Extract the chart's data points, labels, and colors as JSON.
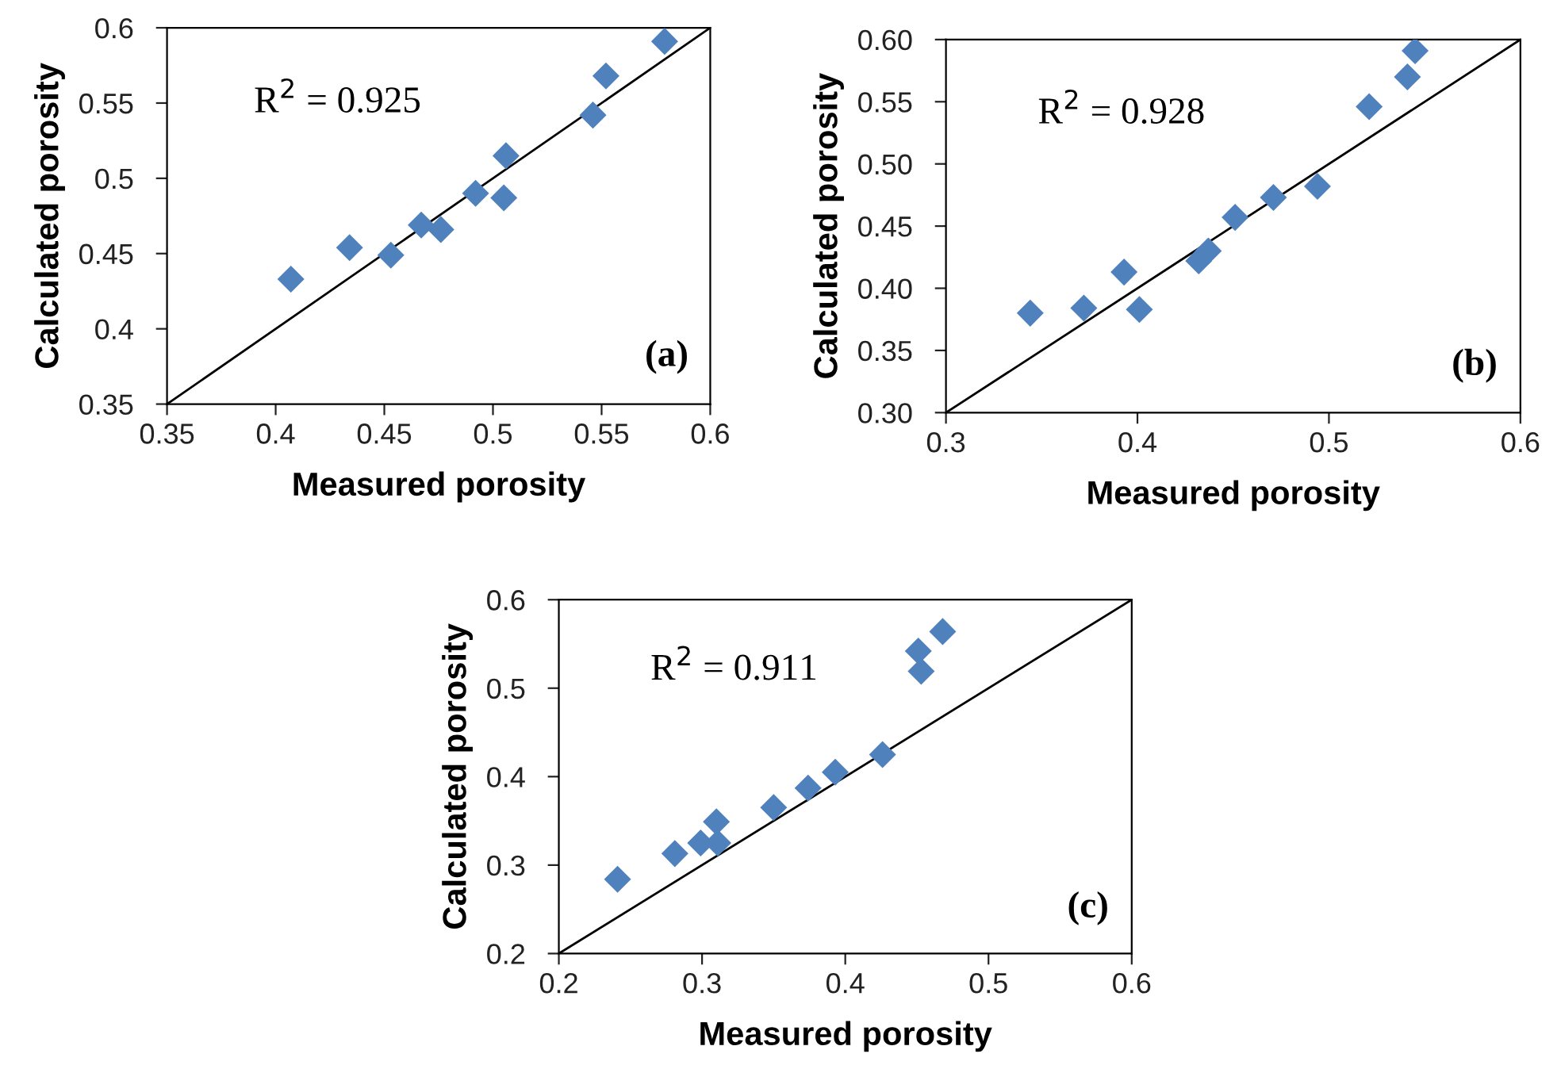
{
  "chart_data": [
    {
      "type": "scatter",
      "xlabel": "Measured porosity",
      "ylabel": "Calculated porosity",
      "annotations": [
        "R$^{2}$ = 0.925",
        "(a)"
      ],
      "xlim": [
        0.35,
        0.6
      ],
      "ylim": [
        0.35,
        0.6
      ],
      "xticks": [
        0.35,
        0.4,
        0.45,
        0.5,
        0.55,
        0.6
      ],
      "yticks": [
        0.35,
        0.4,
        0.45,
        0.5,
        0.55,
        0.6
      ],
      "grid": false,
      "series": [
        {
          "marker": "diamond",
          "color": "#4f81bd",
          "x": [
            0.407,
            0.434,
            0.453,
            0.467,
            0.476,
            0.492,
            0.505,
            0.506,
            0.546,
            0.552,
            0.579
          ],
          "values": [
            0.433,
            0.454,
            0.449,
            0.469,
            0.466,
            0.49,
            0.487,
            0.515,
            0.542,
            0.568,
            0.591
          ]
        },
        {
          "type": "line",
          "color": "#000000",
          "x": [
            0.35,
            0.6
          ],
          "values": [
            0.35,
            0.6
          ]
        }
      ]
    },
    {
      "type": "scatter",
      "xlabel": "Measured porosity",
      "ylabel": "Calculated porosity",
      "annotations": [
        "R$^{2}$ = 0.928",
        "(b)"
      ],
      "xlim": [
        0.3,
        0.6
      ],
      "ylim": [
        0.3,
        0.6
      ],
      "xticks": [
        0.3,
        0.4,
        0.5,
        0.6
      ],
      "yticks": [
        {
          "value": 0.3,
          "label": "0.30"
        },
        {
          "value": 0.35,
          "label": "0.35"
        },
        {
          "value": 0.4,
          "label": "0.40"
        },
        {
          "value": 0.45,
          "label": "0.45"
        },
        {
          "value": 0.5,
          "label": "0.50"
        },
        {
          "value": 0.55,
          "label": "0.55"
        },
        {
          "value": 0.6,
          "label": "0.60"
        }
      ],
      "grid": false,
      "series": [
        {
          "marker": "diamond",
          "color": "#4f81bd",
          "x": [
            0.344,
            0.372,
            0.393,
            0.401,
            0.432,
            0.437,
            0.451,
            0.471,
            0.494,
            0.521,
            0.541,
            0.545
          ],
          "values": [
            0.38,
            0.384,
            0.413,
            0.383,
            0.422,
            0.43,
            0.457,
            0.473,
            0.482,
            0.546,
            0.57,
            0.591
          ]
        },
        {
          "type": "line",
          "color": "#000000",
          "x": [
            0.3,
            0.6
          ],
          "values": [
            0.3,
            0.6
          ]
        }
      ]
    },
    {
      "type": "scatter",
      "xlabel": "Measured porosity",
      "ylabel": "Calculated porosity",
      "annotations": [
        "R$^{2}$ = 0.911",
        "(c)"
      ],
      "xlim": [
        0.2,
        0.6
      ],
      "ylim": [
        0.2,
        0.6
      ],
      "xticks": [
        0.2,
        0.3,
        0.4,
        0.5,
        0.6
      ],
      "yticks": [
        0.2,
        0.3,
        0.4,
        0.5,
        0.6
      ],
      "grid": false,
      "series": [
        {
          "marker": "diamond",
          "color": "#4f81bd",
          "x": [
            0.241,
            0.281,
            0.299,
            0.31,
            0.311,
            0.35,
            0.374,
            0.393,
            0.426,
            0.451,
            0.453,
            0.468
          ],
          "values": [
            0.284,
            0.313,
            0.325,
            0.349,
            0.325,
            0.365,
            0.387,
            0.405,
            0.425,
            0.542,
            0.519,
            0.564
          ]
        },
        {
          "type": "line",
          "color": "#000000",
          "x": [
            0.2,
            0.6
          ],
          "values": [
            0.2,
            0.6
          ]
        }
      ]
    }
  ]
}
